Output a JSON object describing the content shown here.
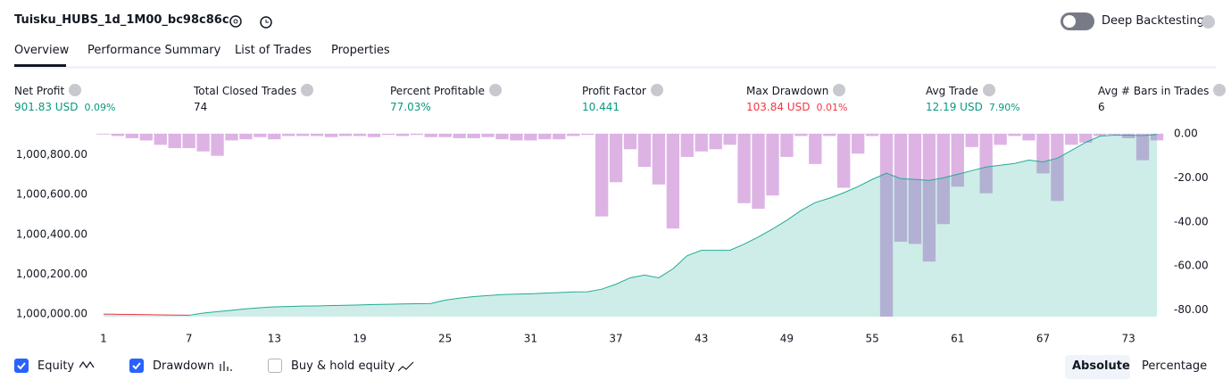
{
  "header": {
    "title": "Tuisku_HUBS_1d_1M00_bc98c86c",
    "toggle_label": "Deep Backtesting"
  },
  "tabs": [
    "Overview",
    "Performance Summary",
    "List of Trades",
    "Properties"
  ],
  "metrics": [
    {
      "label": "Net Profit",
      "value": "901.83 USD",
      "sub": "0.09%",
      "color": "#089981"
    },
    {
      "label": "Total Closed Trades",
      "value": "74",
      "color": "#131722"
    },
    {
      "label": "Percent Profitable",
      "value": "77.03%",
      "color": "#089981"
    },
    {
      "label": "Profit Factor",
      "value": "10.441",
      "color": "#089981"
    },
    {
      "label": "Max Drawdown",
      "value": "103.84 USD",
      "sub": "0.01%",
      "color": "#f23645"
    },
    {
      "label": "Avg Trade",
      "value": "12.19 USD",
      "sub": "7.90%",
      "color": "#089981"
    },
    {
      "label": "Avg # Bars in Trades",
      "value": "6",
      "color": "#131722"
    }
  ],
  "chart_data": {
    "type": "line",
    "x": [
      1,
      2,
      3,
      4,
      5,
      6,
      7,
      8,
      9,
      10,
      11,
      12,
      13,
      14,
      15,
      16,
      17,
      18,
      19,
      20,
      21,
      22,
      23,
      24,
      25,
      26,
      27,
      28,
      29,
      30,
      31,
      32,
      33,
      34,
      35,
      36,
      37,
      38,
      39,
      40,
      41,
      42,
      43,
      44,
      45,
      46,
      47,
      48,
      49,
      50,
      51,
      52,
      53,
      54,
      55,
      56,
      57,
      58,
      59,
      60,
      61,
      62,
      63,
      64,
      65,
      66,
      67,
      68,
      69,
      70,
      71,
      72,
      73,
      74,
      75
    ],
    "xlim": [
      0.5,
      75.5
    ],
    "xticks": [
      1,
      7,
      13,
      19,
      25,
      31,
      37,
      43,
      49,
      55,
      61,
      67,
      73
    ],
    "ylim": [
      999987,
      1000905
    ],
    "yticks": [
      {
        "value": 1000000,
        "label": "1,000,000.00"
      },
      {
        "value": 1000200,
        "label": "1,000,200.00"
      },
      {
        "value": 1000400,
        "label": "1,000,400.00"
      },
      {
        "value": 1000600,
        "label": "1,000,600.00"
      },
      {
        "value": 1000800,
        "label": "1,000,800.00"
      }
    ],
    "y2lim": [
      -83,
      0
    ],
    "y2ticks": [
      {
        "value": 0,
        "label": "0.00"
      },
      {
        "value": -20,
        "label": "-20.00"
      },
      {
        "value": -40,
        "label": "-40.00"
      },
      {
        "value": -60,
        "label": "-60.00"
      },
      {
        "value": -80,
        "label": "-80.00"
      }
    ],
    "series": [
      {
        "name": "Equity",
        "type": "area",
        "color": "#22ab94",
        "negative_color": "#f23645",
        "values": [
          1000000,
          999999,
          999998,
          999997,
          999996,
          999995,
          999994,
          1000005,
          1000012,
          1000019,
          1000026,
          1000032,
          1000036,
          1000038,
          1000040,
          1000041,
          1000043,
          1000044,
          1000046,
          1000048,
          1000049,
          1000051,
          1000052,
          1000053,
          1000070,
          1000080,
          1000088,
          1000093,
          1000098,
          1000100,
          1000102,
          1000105,
          1000108,
          1000111,
          1000112,
          1000125,
          1000150,
          1000182,
          1000196,
          1000182,
          1000227,
          1000293,
          1000320,
          1000320,
          1000320,
          1000351,
          1000387,
          1000427,
          1000471,
          1000520,
          1000560,
          1000582,
          1000609,
          1000640,
          1000676,
          1000707,
          1000680,
          1000676,
          1000671,
          1000684,
          1000702,
          1000720,
          1000738,
          1000747,
          1000756,
          1000773,
          1000764,
          1000782,
          1000822,
          1000862,
          1000893,
          1000898,
          1000898,
          1000896,
          1000901.83
        ]
      },
      {
        "name": "Drawdown",
        "type": "bar",
        "axis": "y2",
        "color": "#ce93d8",
        "values": [
          -0.3,
          -1,
          -2,
          -3,
          -5,
          -6.5,
          -6.5,
          -8,
          -10,
          -3,
          -2.5,
          -1.5,
          -2.5,
          -1,
          -1,
          -1,
          -1.5,
          -1,
          -1,
          -1.5,
          -0.5,
          -1,
          -0.5,
          -1.5,
          -1.5,
          -2,
          -2,
          -1.5,
          -2.5,
          -3,
          -3,
          -2.5,
          -2.5,
          -1,
          -0.5,
          -37.5,
          -22,
          -7,
          -15,
          -23,
          -43,
          -10.5,
          -8,
          -7,
          -5,
          -31.5,
          -34,
          -28,
          -10.5,
          -1,
          -13.7,
          -1,
          -24.5,
          -9,
          -1,
          -83,
          -49,
          -50,
          -58,
          -41,
          -24,
          -6,
          -27,
          -5,
          -1,
          -3,
          -18,
          -30.5,
          -5,
          -4,
          -1,
          -0.5,
          -2,
          -12,
          -3
        ]
      }
    ]
  },
  "legend": [
    {
      "label": "Equity",
      "checked": true
    },
    {
      "label": "Drawdown",
      "checked": true
    },
    {
      "label": "Buy & hold equity",
      "checked": false
    }
  ],
  "buttons": [
    "Absolute",
    "Percentage"
  ]
}
